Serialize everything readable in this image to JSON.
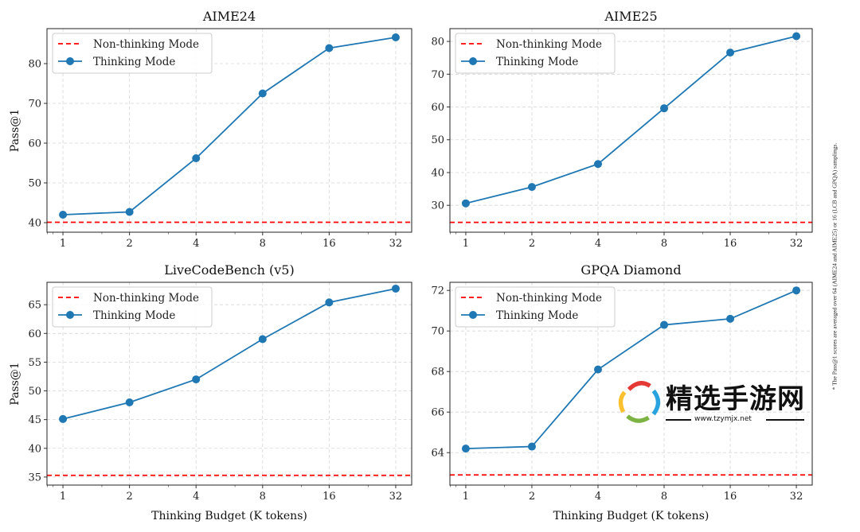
{
  "chart_data": [
    {
      "type": "line",
      "title": "AIME24",
      "xlabel": "",
      "ylabel": "Pass@1",
      "x": [
        1,
        2,
        4,
        8,
        16,
        32
      ],
      "xscale": "log2",
      "ylim": [
        37.6,
        88.8
      ],
      "yticks": [
        40,
        50,
        60,
        70,
        80
      ],
      "grid": true,
      "legend": "top-left",
      "series": [
        {
          "name": "Non-thinking Mode",
          "style": "dashed",
          "color": "#ff0000",
          "value": 40.1
        },
        {
          "name": "Thinking Mode",
          "color": "#1f77b4",
          "values": [
            42.0,
            42.7,
            56.2,
            72.5,
            83.9,
            86.6
          ]
        }
      ]
    },
    {
      "type": "line",
      "title": "AIME25",
      "xlabel": "",
      "ylabel": "",
      "x": [
        1,
        2,
        4,
        8,
        16,
        32
      ],
      "xscale": "log2",
      "ylim": [
        21.8,
        83.9
      ],
      "yticks": [
        30,
        40,
        50,
        60,
        70,
        80
      ],
      "grid": true,
      "legend": "top-left",
      "series": [
        {
          "name": "Non-thinking Mode",
          "style": "dashed",
          "color": "#ff0000",
          "value": 24.8
        },
        {
          "name": "Thinking Mode",
          "color": "#1f77b4",
          "values": [
            30.6,
            35.6,
            42.6,
            59.6,
            76.6,
            81.6
          ]
        }
      ]
    },
    {
      "type": "line",
      "title": "LiveCodeBench (v5)",
      "xlabel": "Thinking Budget (K tokens)",
      "ylabel": "Pass@1",
      "x": [
        1,
        2,
        4,
        8,
        16,
        32
      ],
      "xscale": "log2",
      "ylim": [
        33.6,
        68.9
      ],
      "yticks": [
        35,
        40,
        45,
        50,
        55,
        60,
        65
      ],
      "grid": true,
      "legend": "top-left",
      "series": [
        {
          "name": "Non-thinking Mode",
          "style": "dashed",
          "color": "#ff0000",
          "value": 35.3
        },
        {
          "name": "Thinking Mode",
          "color": "#1f77b4",
          "values": [
            45.1,
            48.0,
            52.0,
            59.0,
            65.4,
            67.8
          ]
        }
      ]
    },
    {
      "type": "line",
      "title": "GPQA Diamond",
      "xlabel": "Thinking Budget (K tokens)",
      "ylabel": "",
      "x": [
        1,
        2,
        4,
        8,
        16,
        32
      ],
      "xscale": "log2",
      "ylim": [
        62.4,
        72.4
      ],
      "yticks": [
        64,
        66,
        68,
        70,
        72
      ],
      "grid": true,
      "legend": "top-left",
      "series": [
        {
          "name": "Non-thinking Mode",
          "style": "dashed",
          "color": "#ff0000",
          "value": 62.9
        },
        {
          "name": "Thinking Mode",
          "color": "#1f77b4",
          "values": [
            64.2,
            64.3,
            68.1,
            70.3,
            70.6,
            72.0
          ]
        }
      ]
    }
  ],
  "footnote": "* The Pass@1 scores are averaged over 64 (AIME24 and AIME25) or 16 (LCB and GPQA) samplings.",
  "watermark": {
    "text": "精选手游网",
    "url": "www.tzymjx.net"
  }
}
